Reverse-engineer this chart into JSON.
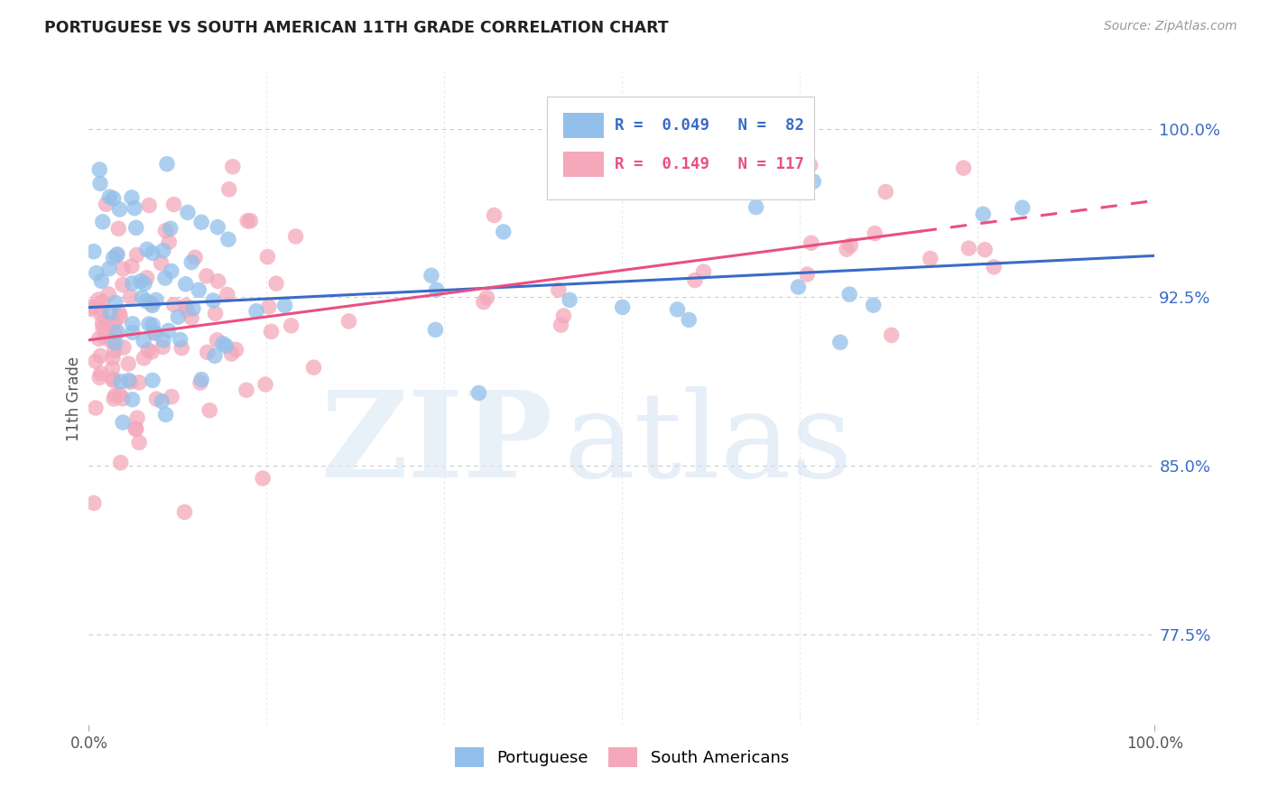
{
  "title": "PORTUGUESE VS SOUTH AMERICAN 11TH GRADE CORRELATION CHART",
  "source": "Source: ZipAtlas.com",
  "ylabel": "11th Grade",
  "xlim": [
    0.0,
    1.0
  ],
  "ylim": [
    0.735,
    1.025
  ],
  "yticks": [
    0.775,
    0.85,
    0.925,
    1.0
  ],
  "ytick_labels": [
    "77.5%",
    "85.0%",
    "92.5%",
    "100.0%"
  ],
  "blue_color": "#92C0EA",
  "pink_color": "#F4A8BA",
  "line_blue_color": "#3A6BC8",
  "line_pink_color": "#E85080",
  "blue_R": 0.049,
  "blue_N": 82,
  "pink_R": 0.149,
  "pink_N": 117,
  "blue_intercept": 0.9205,
  "blue_slope": 0.023,
  "pink_intercept": 0.906,
  "pink_slope": 0.062,
  "pink_line_dash_x": 0.78,
  "seed_blue": 42,
  "seed_pink": 99
}
